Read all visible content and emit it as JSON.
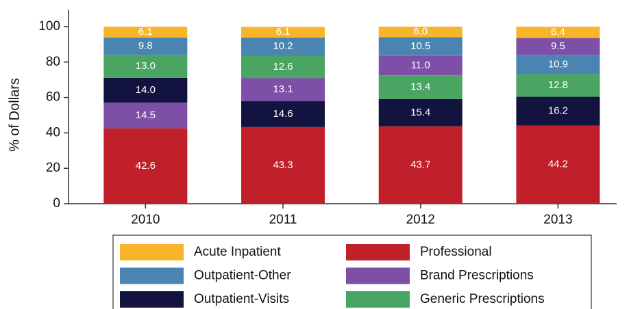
{
  "chart_data": {
    "type": "stacked_bar",
    "y_label": "% of Dollars",
    "categories": [
      "2010",
      "2011",
      "2012",
      "2013"
    ],
    "series": [
      {
        "name": "Acute Inpatient",
        "color": "#f9b529",
        "values": [
          6.1,
          6.1,
          6.0,
          6.4
        ],
        "value_labels": [
          "6.1",
          "6.1",
          "6.0",
          "6.4"
        ]
      },
      {
        "name": "Professional",
        "color": "#c0202a",
        "values": [
          42.6,
          43.3,
          43.7,
          44.2
        ],
        "value_labels": [
          "42.6",
          "43.3",
          "43.7",
          "44.2"
        ]
      },
      {
        "name": "Outpatient-Other",
        "color": "#4a84b0",
        "values": [
          9.8,
          10.2,
          10.5,
          10.9
        ],
        "value_labels": [
          "9.8",
          "10.2",
          "10.5",
          "10.9"
        ]
      },
      {
        "name": "Brand Prescriptions",
        "color": "#7e4fa6",
        "values": [
          14.5,
          13.1,
          11.0,
          9.5
        ],
        "value_labels": [
          "14.5",
          "13.1",
          "11.0",
          "9.5"
        ]
      },
      {
        "name": "Outpatient-Visits",
        "color": "#13133f",
        "values": [
          14.0,
          14.6,
          15.4,
          16.2
        ],
        "value_labels": [
          "14.0",
          "14.6",
          "15.4",
          "16.2"
        ]
      },
      {
        "name": "Generic Prescriptions",
        "color": "#4aa462",
        "values": [
          13.0,
          12.6,
          13.4,
          12.8
        ],
        "value_labels": [
          "13.0",
          "12.6",
          "13.4",
          "12.8"
        ]
      }
    ],
    "ylim": [
      0,
      100
    ],
    "yticks": [
      0,
      20,
      40,
      60,
      80,
      100
    ],
    "grid": false
  }
}
